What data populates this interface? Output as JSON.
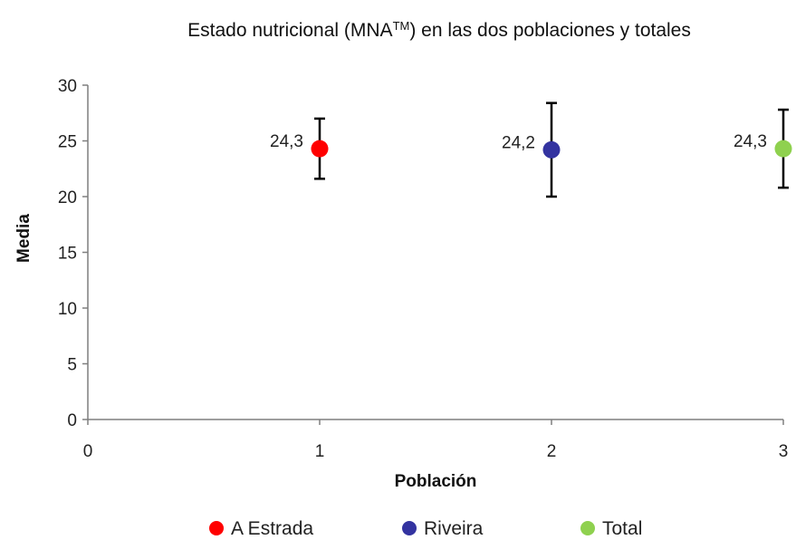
{
  "chart_data": {
    "type": "scatter",
    "title": "Estado nutricional (MNA",
    "title_sup": "TM",
    "title_suffix": ") en las dos poblaciones y totales",
    "xlabel": "Población",
    "ylabel": "Media",
    "xlim": [
      0,
      3
    ],
    "ylim": [
      0,
      30
    ],
    "x_ticks": [
      "0",
      "1",
      "2",
      "3"
    ],
    "y_ticks": [
      "0",
      "5",
      "10",
      "15",
      "20",
      "25",
      "30"
    ],
    "grid": false,
    "legend_position": "bottom",
    "series": [
      {
        "name": "A Estrada",
        "color": "#ff0000",
        "x": 1,
        "y": 24.3,
        "error_low": 21.6,
        "error_high": 27.0,
        "label": "24,3"
      },
      {
        "name": "Riveira",
        "color": "#3333a0",
        "x": 2,
        "y": 24.2,
        "error_low": 20.0,
        "error_high": 28.4,
        "label": "24,2"
      },
      {
        "name": "Total",
        "color": "#8fd14f",
        "x": 3,
        "y": 24.3,
        "error_low": 20.8,
        "error_high": 27.8,
        "label": "24,3"
      }
    ]
  }
}
